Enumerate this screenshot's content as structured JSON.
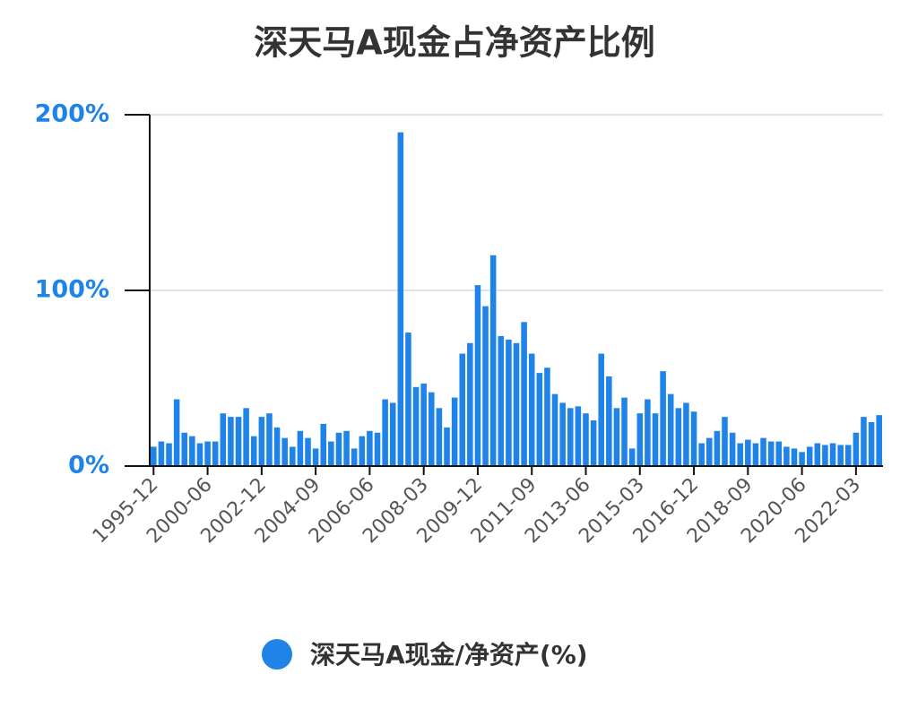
{
  "chart_data": {
    "type": "bar",
    "title": "深天马A现金占净资产比例",
    "categories": [
      "1995-12",
      null,
      null,
      null,
      null,
      null,
      null,
      "2000-06",
      null,
      null,
      null,
      null,
      null,
      null,
      "2002-12",
      null,
      null,
      null,
      null,
      null,
      null,
      "2004-09",
      null,
      null,
      null,
      null,
      null,
      null,
      "2006-06",
      null,
      null,
      null,
      null,
      null,
      null,
      "2008-03",
      null,
      null,
      null,
      null,
      null,
      null,
      "2009-12",
      null,
      null,
      null,
      null,
      null,
      null,
      "2011-09",
      null,
      null,
      null,
      null,
      null,
      null,
      "2013-06",
      null,
      null,
      null,
      null,
      null,
      null,
      "2015-03",
      null,
      null,
      null,
      null,
      null,
      null,
      "2016-12",
      null,
      null,
      null,
      null,
      null,
      null,
      "2018-09",
      null,
      null,
      null,
      null,
      null,
      null,
      "2020-06",
      null,
      null,
      null,
      null,
      null,
      null,
      "2022-03",
      null,
      null,
      null
    ],
    "series": [
      {
        "name": "深天马A现金/净资产(%)",
        "color": "#1f83e8",
        "values": [
          11,
          14,
          13,
          38,
          19,
          17,
          13,
          14,
          14,
          30,
          28,
          28,
          33,
          17,
          28,
          30,
          22,
          16,
          11,
          20,
          16,
          10,
          24,
          14,
          19,
          20,
          10,
          17,
          20,
          19,
          38,
          36,
          190,
          76,
          45,
          47,
          42,
          33,
          22,
          39,
          64,
          70,
          103,
          91,
          120,
          74,
          72,
          70,
          82,
          64,
          53,
          56,
          41,
          36,
          33,
          34,
          30,
          26,
          64,
          51,
          33,
          39,
          10,
          30,
          38,
          30,
          54,
          41,
          33,
          36,
          31,
          13,
          16,
          20,
          28,
          19,
          13,
          15,
          13,
          16,
          14,
          14,
          11,
          10,
          8,
          11,
          13,
          12,
          13,
          12,
          12,
          19,
          28,
          25,
          29
        ]
      }
    ],
    "ylim": [
      0,
      200
    ],
    "yticks": [
      {
        "value": 0,
        "label": "0%"
      },
      {
        "value": 100,
        "label": "100%"
      },
      {
        "value": 200,
        "label": "200%"
      }
    ],
    "grid": true
  }
}
